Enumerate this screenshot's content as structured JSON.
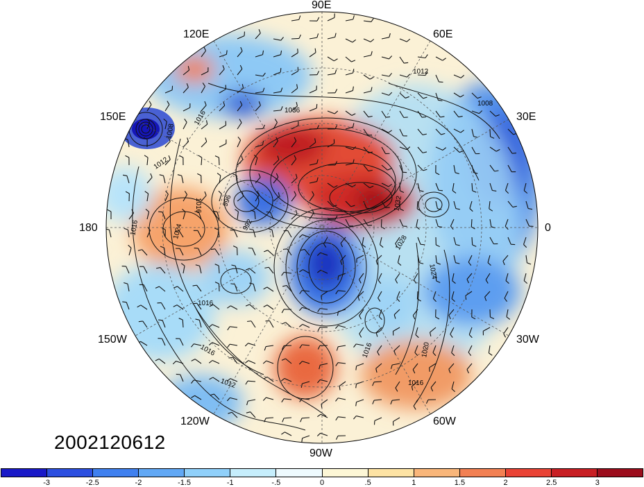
{
  "figure": {
    "date_stamp": "2002120612",
    "longitude_labels": {
      "lon_90e": "90E",
      "lon_120e": "120E",
      "lon_60e": "60E",
      "lon_150e": "150E",
      "lon_30e": "30E",
      "lon_180": "180",
      "lon_0": "0",
      "lon_150w": "150W",
      "lon_30w": "30W",
      "lon_120w": "120W",
      "lon_60w": "60W",
      "lon_90w": "90W"
    },
    "contour_labels": [
      "1036",
      "1012",
      "1008",
      "1016",
      "1008",
      "1012",
      "1016",
      "996",
      "1016",
      "1024",
      "1016",
      "992",
      "1032",
      "1028",
      "1024",
      "1016",
      "1016",
      "1012",
      "1020",
      "1016"
    ]
  },
  "colorbar": {
    "colors": [
      "#1919c8",
      "#2c4fe0",
      "#3f80ef",
      "#61a8f5",
      "#90d0fa",
      "#c6eefc",
      "#eefafe",
      "#fdf7d6",
      "#fde3a4",
      "#f9b67a",
      "#f28053",
      "#e94335",
      "#c81f24",
      "#9b0d1c"
    ],
    "tick_labels": [
      "-3",
      "-2.5",
      "-2",
      "-1.5",
      "-1",
      "-.5",
      "0",
      ".5",
      "1",
      "1.5",
      "2",
      "2.5",
      "3"
    ]
  }
}
